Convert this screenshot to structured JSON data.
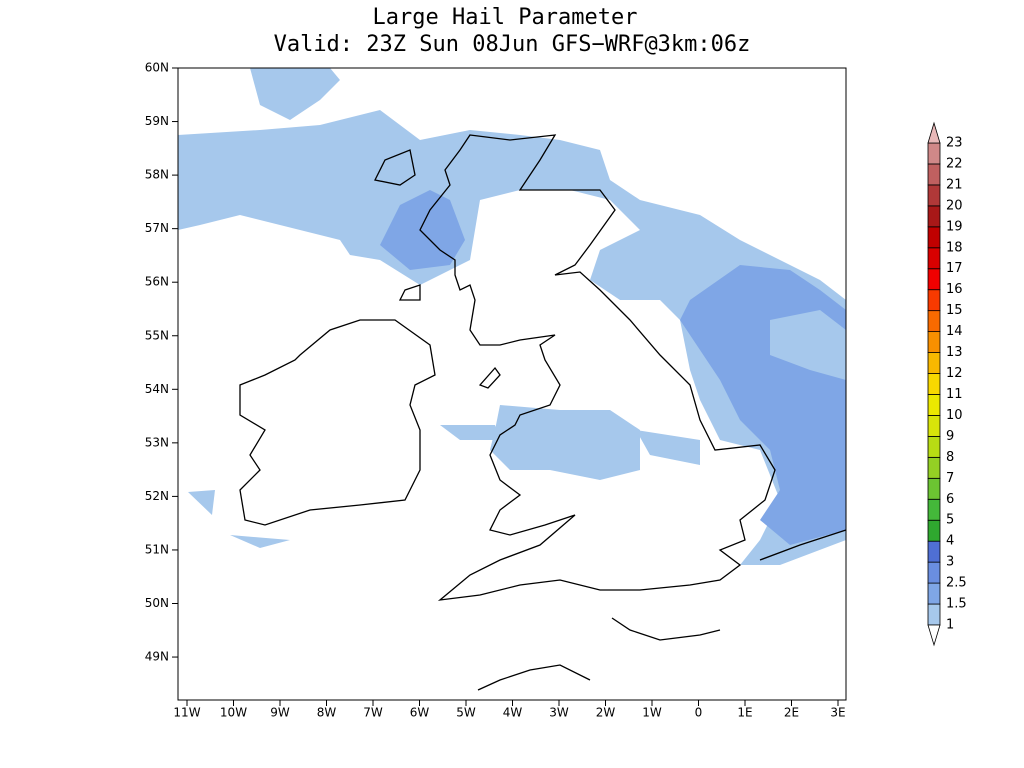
{
  "title": "Large Hail Parameter",
  "subtitle": "Valid: 23Z Sun 08Jun GFS−WRF@3km:06z",
  "map": {
    "lat_ticks": [
      {
        "value": 60,
        "label": "60N"
      },
      {
        "value": 59,
        "label": "59N"
      },
      {
        "value": 58,
        "label": "58N"
      },
      {
        "value": 57,
        "label": "57N"
      },
      {
        "value": 56,
        "label": "56N"
      },
      {
        "value": 55,
        "label": "55N"
      },
      {
        "value": 54,
        "label": "54N"
      },
      {
        "value": 53,
        "label": "53N"
      },
      {
        "value": 52,
        "label": "52N"
      },
      {
        "value": 51,
        "label": "51N"
      },
      {
        "value": 50,
        "label": "50N"
      },
      {
        "value": 49,
        "label": "49N"
      }
    ],
    "lon_ticks": [
      {
        "value": -11,
        "label": "11W"
      },
      {
        "value": -10,
        "label": "10W"
      },
      {
        "value": -9,
        "label": "9W"
      },
      {
        "value": -8,
        "label": "8W"
      },
      {
        "value": -7,
        "label": "7W"
      },
      {
        "value": -6,
        "label": "6W"
      },
      {
        "value": -5,
        "label": "5W"
      },
      {
        "value": -4,
        "label": "4W"
      },
      {
        "value": -3,
        "label": "3W"
      },
      {
        "value": -2,
        "label": "2W"
      },
      {
        "value": -1,
        "label": "1W"
      },
      0,
      {
        "value": 1,
        "label": "1E"
      },
      {
        "value": 2,
        "label": "2E"
      },
      {
        "value": 3,
        "label": "3E"
      }
    ]
  },
  "colorbar": {
    "levels": [
      1,
      1.5,
      2.5,
      3,
      4,
      5,
      6,
      7,
      8,
      9,
      10,
      11,
      12,
      13,
      14,
      15,
      16,
      17,
      18,
      19,
      20,
      21,
      22,
      23
    ],
    "colors": [
      "#ffffff",
      "#a6c8ec",
      "#7fa6e6",
      "#6a8ee0",
      "#4f6fd4",
      "#2fa82f",
      "#44b83a",
      "#6cc432",
      "#94d024",
      "#b8dc14",
      "#d8e40a",
      "#ece800",
      "#f8d800",
      "#f8b800",
      "#f89000",
      "#f86a00",
      "#f83a00",
      "#f00000",
      "#d80000",
      "#c00000",
      "#a81818",
      "#b03838",
      "#c06060",
      "#d08888",
      "#e8b8b8"
    ]
  }
}
